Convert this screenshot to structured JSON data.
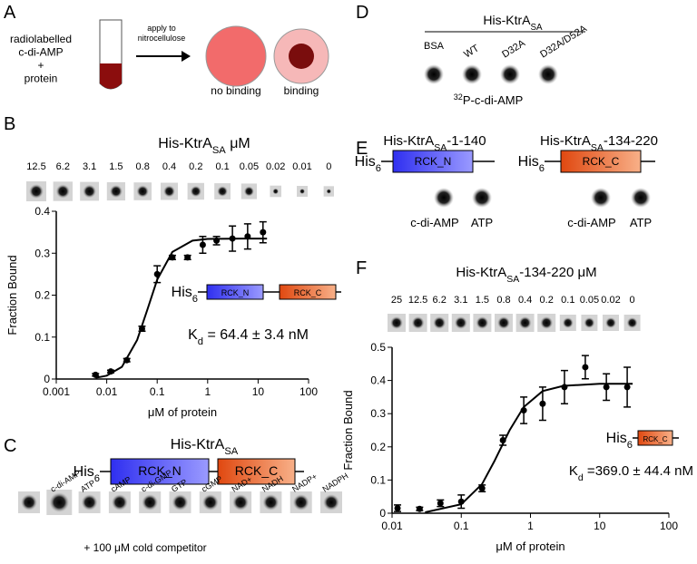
{
  "panels": {
    "A": {
      "label": "A",
      "sample": [
        "radiolabelled",
        "c-di-AMP",
        "+",
        "protein"
      ],
      "step": [
        "apply to",
        "nitrocellulose"
      ],
      "outcomes": [
        "no binding",
        "binding"
      ]
    },
    "B": {
      "label": "B",
      "title": [
        "His-KtrA",
        "SA",
        " μM"
      ],
      "concentrations": [
        "12.5",
        "6.2",
        "3.1",
        "1.5",
        "0.8",
        "0.4",
        "0.2",
        "0.1",
        "0.05",
        "0.02",
        "0.01",
        "0"
      ],
      "construct": [
        "His",
        "6",
        "RCK_N",
        "RCK_C"
      ],
      "kd": [
        "K",
        "d",
        " = 64.4 ± 3.4 nM"
      ]
    },
    "C": {
      "label": "C",
      "title": [
        "His-KtrA",
        "SA"
      ],
      "construct": [
        "His",
        "6",
        "RCK_N",
        "RCK_C"
      ],
      "competitors": [
        "c-di-AMP",
        "ATP",
        "cAMP",
        "c-di-GMP",
        "GTP",
        "cGMP",
        "NAD+",
        "NADH",
        "NADP+",
        "NADPH"
      ],
      "footnote": "+ 100 μM cold competitor"
    },
    "D": {
      "label": "D",
      "title": [
        "His-KtrA",
        "SA"
      ],
      "samples": [
        "BSA",
        "WT",
        "D32A",
        "D32A/D52A"
      ],
      "probe": [
        "32",
        "P-c-di-AMP"
      ]
    },
    "E": {
      "label": "E",
      "constructs": [
        {
          "title": [
            "His-KtrA",
            "SA",
            "-1-140"
          ],
          "tag": [
            "His",
            "6"
          ],
          "domain": "RCK_N",
          "ligands": [
            "c-di-AMP",
            "ATP"
          ]
        },
        {
          "title": [
            "His-KtrA",
            "SA",
            "-134-220"
          ],
          "tag": [
            "His",
            "6"
          ],
          "domain": "RCK_C",
          "ligands": [
            "c-di-AMP",
            "ATP"
          ]
        }
      ]
    },
    "F": {
      "label": "F",
      "title": [
        "His-KtrA",
        "SA",
        "-134-220 μM"
      ],
      "concentrations": [
        "25",
        "12.5",
        "6.2",
        "3.1",
        "1.5",
        "0.8",
        "0.4",
        "0.2",
        "0.1",
        "0.05",
        "0.02",
        "0"
      ],
      "construct": [
        "His",
        "6",
        "RCK_C"
      ],
      "kd": [
        "K",
        "d",
        " =369.0 ± 44.4 nM"
      ]
    }
  },
  "chart_data": [
    {
      "type": "scatter",
      "xlabel": "μM of protein",
      "ylabel": "Fraction Bound",
      "xscale": "log",
      "xlim": [
        0.001,
        100
      ],
      "xticks": [
        0.001,
        0.01,
        0.1,
        1,
        10,
        100
      ],
      "ylim": [
        0,
        0.4
      ],
      "yticks": [
        0,
        0.1,
        0.2,
        0.3,
        0.4
      ],
      "color": "#000000",
      "x": [
        0.006,
        0.012,
        0.025,
        0.05,
        0.1,
        0.2,
        0.4,
        0.8,
        1.5,
        3.1,
        6.2,
        12.5
      ],
      "values": [
        0.01,
        0.018,
        0.045,
        0.12,
        0.25,
        0.29,
        0.29,
        0.32,
        0.33,
        0.335,
        0.34,
        0.35
      ],
      "errors": [
        0.003,
        0.003,
        0.004,
        0.006,
        0.02,
        0.005,
        0.005,
        0.02,
        0.01,
        0.03,
        0.03,
        0.025
      ],
      "fit_x": [
        0.006,
        0.01,
        0.02,
        0.04,
        0.0644,
        0.1,
        0.2,
        0.5,
        1,
        5,
        15
      ],
      "fit_y": [
        0.0029,
        0.0079,
        0.029,
        0.093,
        0.167,
        0.237,
        0.303,
        0.33,
        0.334,
        0.335,
        0.335
      ]
    },
    {
      "type": "scatter",
      "xlabel": "μM of protein",
      "ylabel": "Fraction Bound",
      "xscale": "log",
      "xlim": [
        0.01,
        100
      ],
      "xticks": [
        0.01,
        0.1,
        1,
        10,
        100
      ],
      "ylim": [
        0,
        0.5
      ],
      "yticks": [
        0,
        0.1,
        0.2,
        0.3,
        0.4,
        0.5
      ],
      "color": "#000000",
      "x": [
        0.012,
        0.025,
        0.05,
        0.1,
        0.2,
        0.4,
        0.8,
        1.5,
        3.1,
        6.2,
        12.5,
        25
      ],
      "values": [
        0.015,
        0.013,
        0.03,
        0.035,
        0.075,
        0.22,
        0.31,
        0.33,
        0.38,
        0.44,
        0.38,
        0.38
      ],
      "errors": [
        0.01,
        0.005,
        0.01,
        0.02,
        0.01,
        0.015,
        0.04,
        0.05,
        0.05,
        0.035,
        0.04,
        0.06
      ],
      "fit_x": [
        0.03,
        0.1,
        0.2,
        0.3,
        0.5,
        0.8,
        1.5,
        3,
        10,
        30
      ],
      "fit_y": [
        0.0026,
        0.027,
        0.088,
        0.156,
        0.25,
        0.32,
        0.368,
        0.384,
        0.39,
        0.39
      ]
    }
  ]
}
